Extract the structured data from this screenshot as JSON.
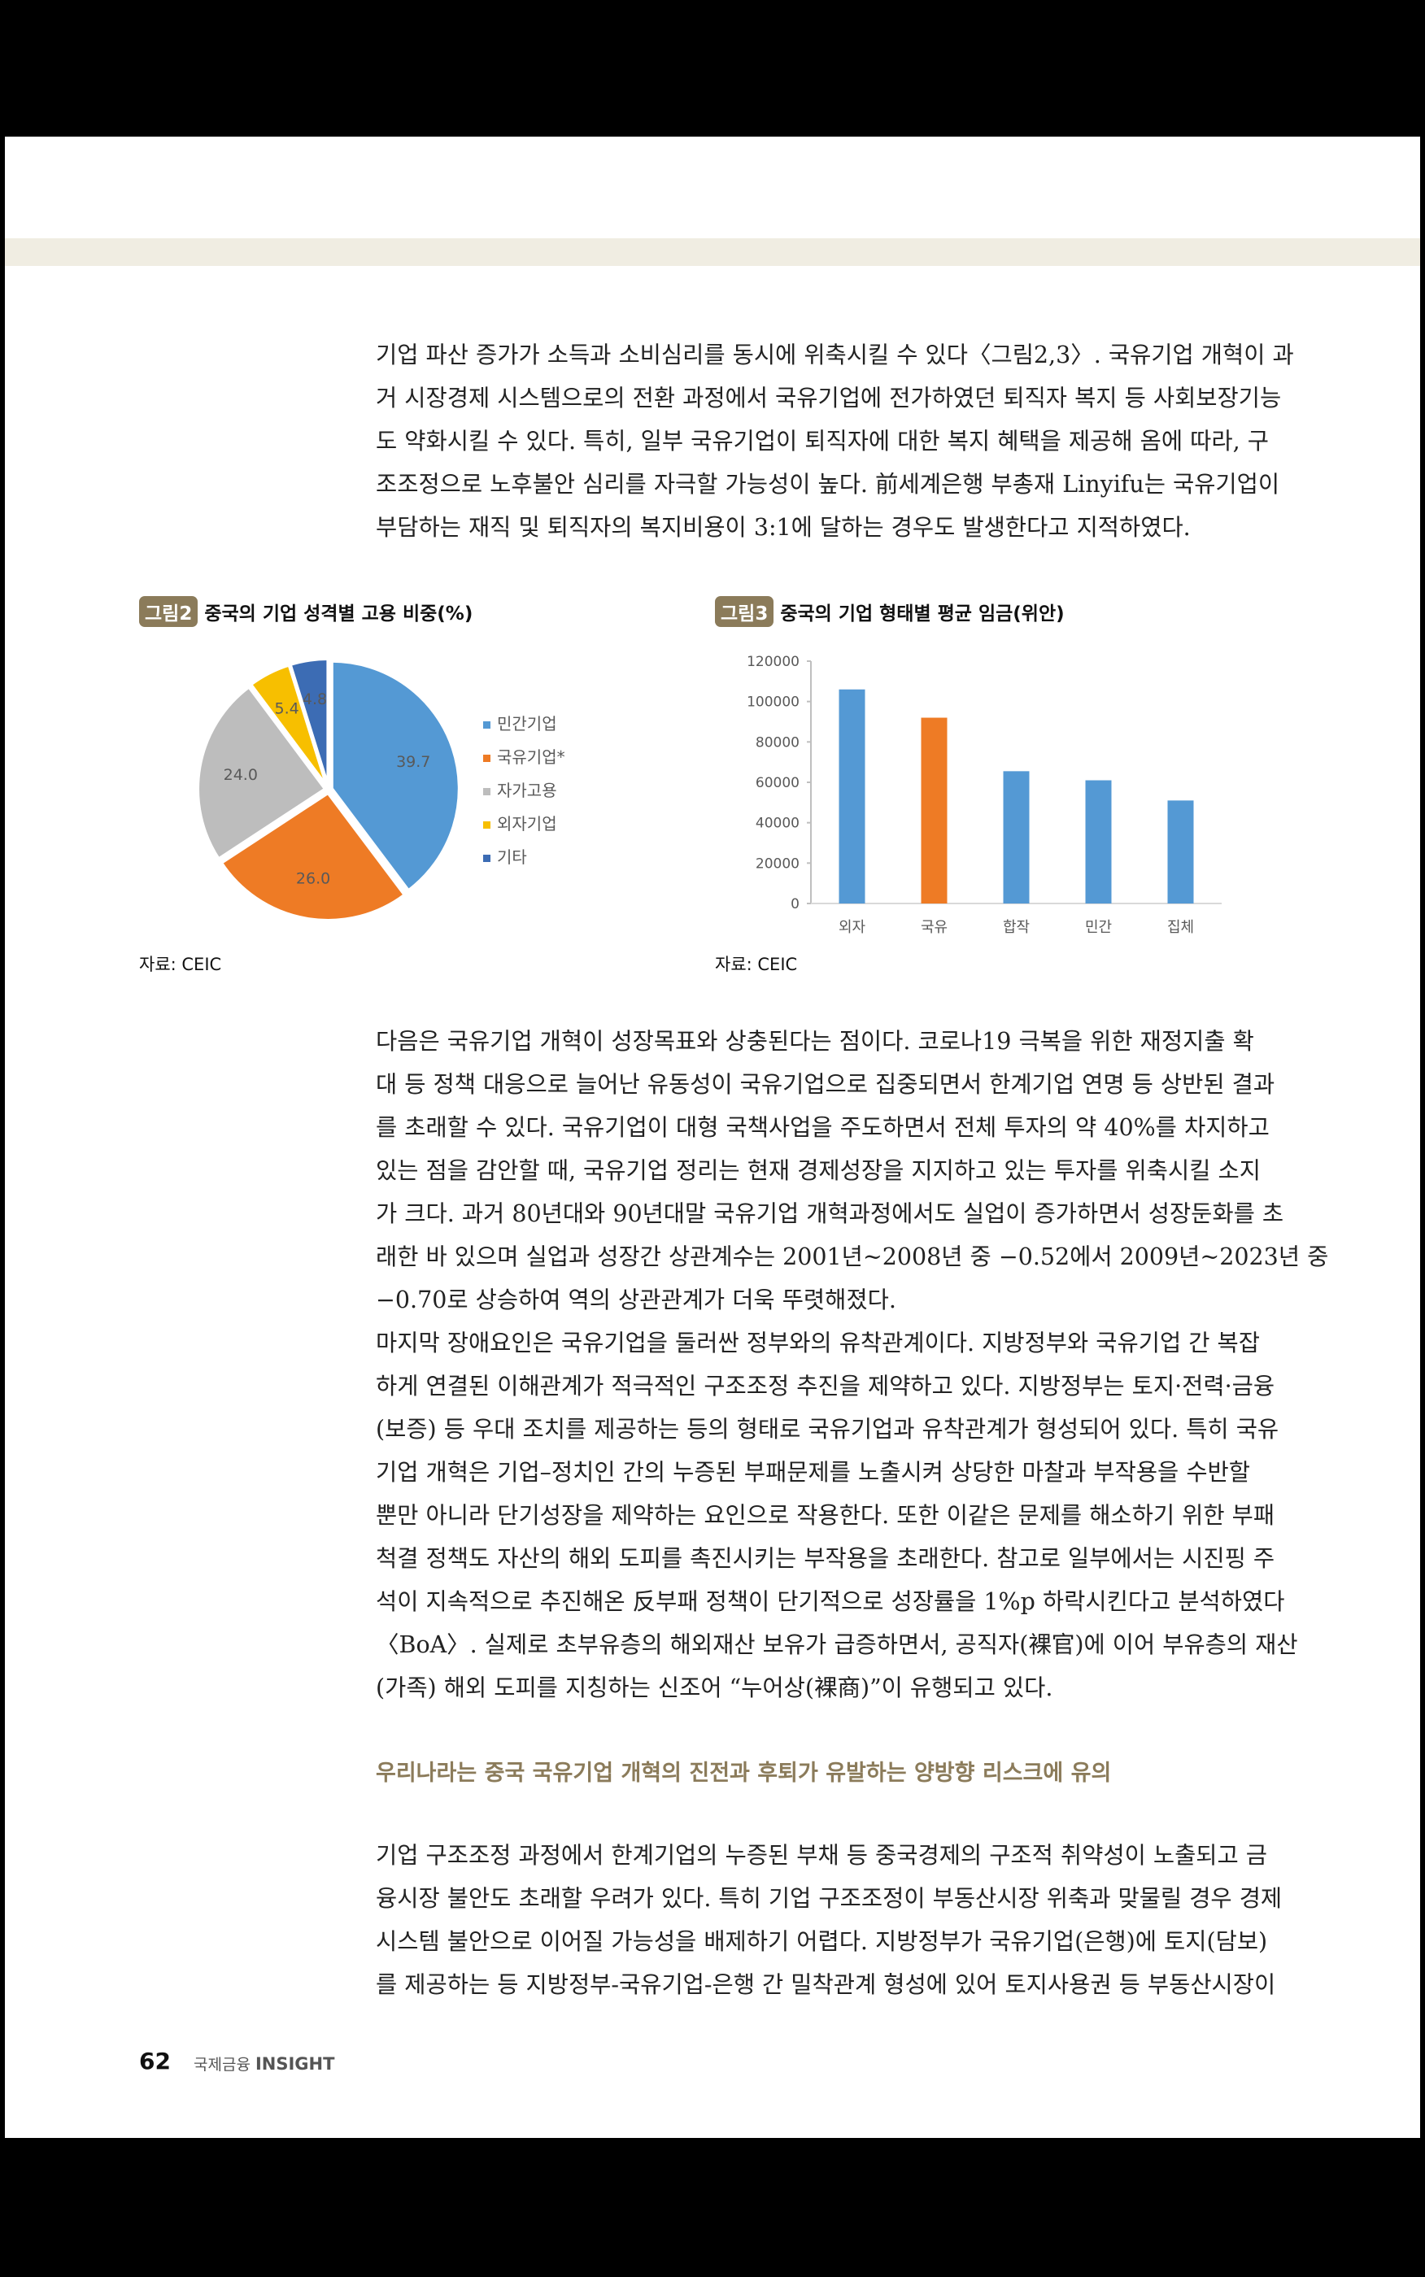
{
  "paragraphs": [
    {
      "lines": [
        "기업 파산 증가가 소득과 소비심리를 동시에 위축시킬 수 있다〈그림2,3〉. 국유기업 개혁이 과",
        "거 시장경제 시스템으로의 전환 과정에서 국유기업에 전가하였던 퇴직자 복지 등 사회보장기능",
        "도 약화시킬 수 있다. 특히, 일부 국유기업이 퇴직자에 대한 복지 혜택을 제공해 옴에 따라, 구",
        "조조정으로 노후불안 심리를 자극할 가능성이 높다. 前세계은행 부총재 Linyifu는 국유기업이",
        "부담하는 재직 및 퇴직자의 복지비용이 3:1에 달하는 경우도 발생한다고 지적하였다."
      ]
    },
    {
      "lines": [
        "다음은 국유기업 개혁이 성장목표와 상충된다는 점이다. 코로나19 극복을 위한 재정지출 확",
        "대 등 정책 대응으로 늘어난 유동성이 국유기업으로 집중되면서 한계기업 연명 등 상반된 결과",
        "를 초래할 수 있다. 국유기업이 대형 국책사업을 주도하면서 전체 투자의 약 40%를 차지하고",
        "있는 점을 감안할 때, 국유기업 정리는 현재 경제성장을 지지하고 있는 투자를 위축시킬 소지",
        "가 크다. 과거 80년대와 90년대말 국유기업 개혁과정에서도 실업이 증가하면서 성장둔화를 초",
        "래한 바 있으며 실업과 성장간 상관계수는 2001년~2008년 중 −0.52에서 2009년~2023년 중",
        "−0.70로 상승하여 역의 상관관계가 더욱 뚜렷해졌다."
      ]
    },
    {
      "lines": [
        "마지막 장애요인은 국유기업을 둘러싼 정부와의 유착관계이다. 지방정부와 국유기업 간 복잡",
        "하게 연결된 이해관계가 적극적인 구조조정 추진을 제약하고 있다. 지방정부는 토지·전력·금융",
        "(보증) 등 우대 조치를 제공하는 등의 형태로 국유기업과 유착관계가 형성되어 있다. 특히 국유",
        "기업 개혁은 기업–정치인 간의 누증된 부패문제를 노출시켜 상당한 마찰과 부작용을 수반할",
        "뿐만 아니라 단기성장을 제약하는 요인으로 작용한다. 또한 이같은 문제를 해소하기 위한 부패",
        "척결 정책도 자산의 해외 도피를 촉진시키는 부작용을 초래한다. 참고로 일부에서는 시진핑 주",
        "석이 지속적으로 추진해온 反부패 정책이 단기적으로 성장률을 1%p 하락시킨다고 분석하였다",
        "〈BoA〉. 실제로 초부유층의 해외재산 보유가 급증하면서, 공직자(裸官)에 이어 부유층의 재산",
        "(가족) 해외 도피를 지칭하는 신조어 “누어상(裸商)”이 유행되고 있다."
      ]
    },
    {
      "lines": [
        "기업 구조조정 과정에서 한계기업의 누증된 부채 등 중국경제의 구조적 취약성이 노출되고 금",
        "융시장 불안도 초래할 우려가 있다. 특히 기업 구조조정이 부동산시장 위축과 맞물릴 경우 경제",
        "시스템 불안으로 이어질 가능성을 배제하기 어렵다. 지방정부가 국유기업(은행)에 토지(담보)",
        "를 제공하는 등 지방정부-국유기업-은행 간 밀착관계 형성에 있어 토지사용권 등 부동산시장이"
      ]
    }
  ],
  "section_heading": "우리나라는 중국 국유기업 개혁의 진전과 후퇴가 유발하는 양방향 리스크에 유의",
  "figures": {
    "fig2": {
      "tag": "그림2",
      "title": "중국의 기업 성격별 고용 비중(%)",
      "source": "자료: CEIC"
    },
    "fig3": {
      "tag": "그림3",
      "title": "중국의 기업 형태별 평균 임금(위안)",
      "source": "자료: CEIC"
    }
  },
  "chart_data": [
    {
      "type": "pie",
      "title": "중국의 기업 성격별 고용 비중(%)",
      "categories": [
        "민간기업",
        "국유기업*",
        "자가고용",
        "외자기업",
        "기타"
      ],
      "values": [
        39.7,
        26.0,
        24.0,
        5.4,
        4.8
      ],
      "labels": [
        "39.7",
        "26.0",
        "24.0",
        "5.4",
        "4.8"
      ],
      "colors": [
        "#5499d4",
        "#ee7b25",
        "#bdbdbd",
        "#f7bf00",
        "#3c6cb4"
      ],
      "legend": "right"
    },
    {
      "type": "bar",
      "title": "중국의 기업 형태별 평균 임금(위안)",
      "categories": [
        "외자",
        "국유",
        "합작",
        "민간",
        "집체"
      ],
      "values": [
        106000,
        92000,
        65500,
        61000,
        51000
      ],
      "colors": [
        "#5499d4",
        "#ee7b25",
        "#5499d4",
        "#5499d4",
        "#5499d4"
      ],
      "ylim": [
        0,
        120000
      ],
      "yticks": [
        "0",
        "20000",
        "40000",
        "60000",
        "80000",
        "100000",
        "120000"
      ],
      "grid": false
    }
  ],
  "footer": {
    "page_number": "62",
    "publication_kr": "국제금융",
    "publication_en": "INSIGHT"
  }
}
